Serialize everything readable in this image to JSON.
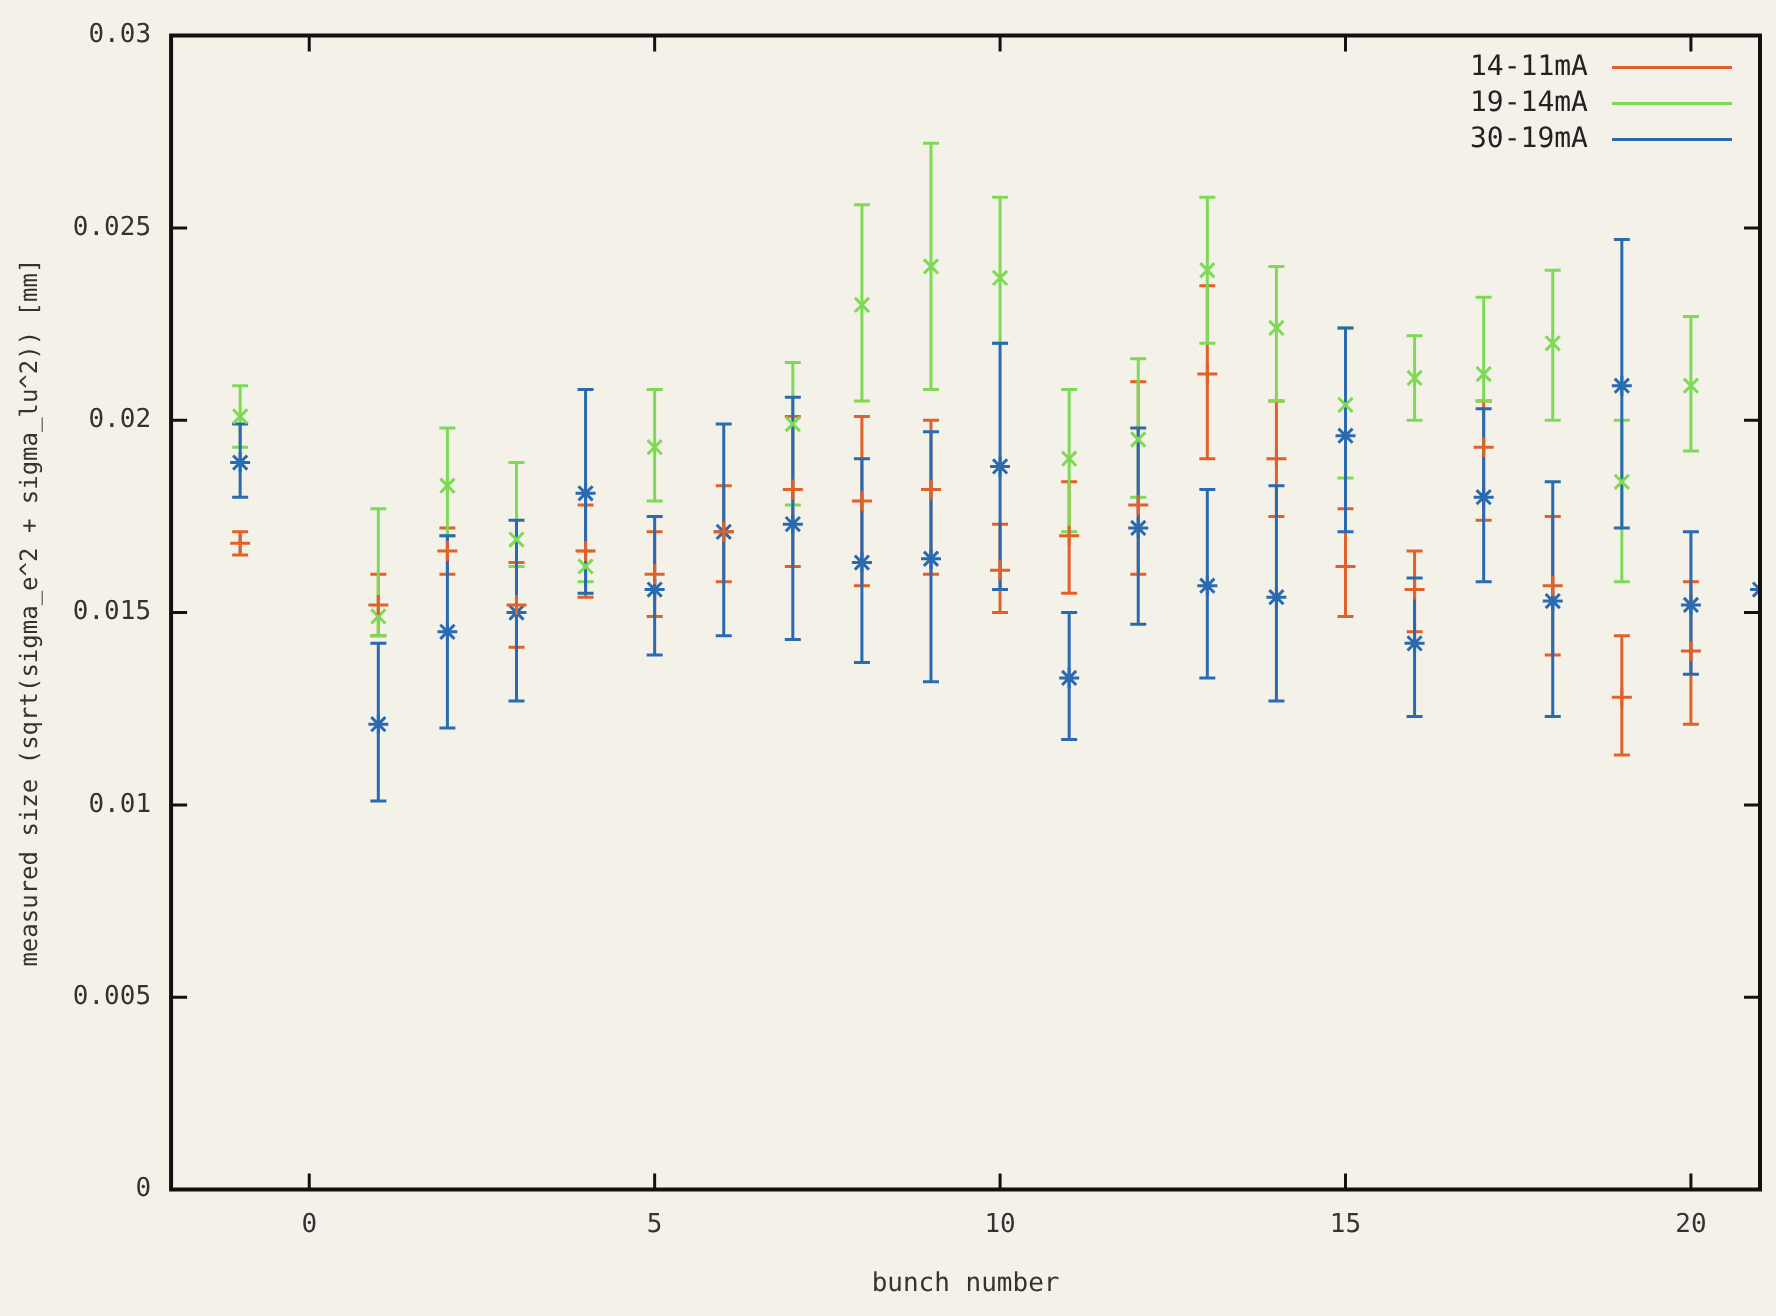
{
  "chart_data": {
    "type": "scatter",
    "xlabel": "bunch number",
    "ylabel": "measured size (sqrt(sigma_e^2 + sigma_lu^2)) [mm]",
    "xlim": [
      -2,
      21
    ],
    "xticks": [
      0,
      5,
      10,
      15,
      20
    ],
    "ylim": [
      0,
      0.03
    ],
    "yticks": [
      0,
      0.005,
      0.01,
      0.015,
      0.02,
      0.025,
      0.03
    ],
    "grid": false,
    "legend": "top right",
    "series": [
      {
        "name": "14-11mA",
        "color": "#e0622a",
        "marker": "cross",
        "x": [
          -1,
          1,
          2,
          3,
          4,
          5,
          6,
          7,
          8,
          9,
          10,
          11,
          12,
          13,
          14,
          15,
          16,
          17,
          18,
          19,
          20
        ],
        "values": [
          0.0168,
          0.0152,
          0.0166,
          0.0152,
          0.0166,
          0.016,
          0.0171,
          0.0182,
          0.0179,
          0.0182,
          0.0161,
          0.017,
          0.0178,
          0.0212,
          0.019,
          0.0162,
          0.0156,
          0.0193,
          0.0157,
          0.0128,
          0.014
        ],
        "errors": [
          [
            0.0165,
            0.0171
          ],
          [
            0.0144,
            0.016
          ],
          [
            0.016,
            0.0172
          ],
          [
            0.0141,
            0.0163
          ],
          [
            0.0154,
            0.0178
          ],
          [
            0.0149,
            0.0171
          ],
          [
            0.0158,
            0.0183
          ],
          [
            0.0162,
            0.0201
          ],
          [
            0.0157,
            0.0201
          ],
          [
            0.016,
            0.02
          ],
          [
            0.015,
            0.0173
          ],
          [
            0.0155,
            0.0184
          ],
          [
            0.016,
            0.021
          ],
          [
            0.019,
            0.0235
          ],
          [
            0.0175,
            0.0205
          ],
          [
            0.0149,
            0.0177
          ],
          [
            0.0145,
            0.0166
          ],
          [
            0.0174,
            0.0205
          ],
          [
            0.0139,
            0.0175
          ],
          [
            0.0113,
            0.0144
          ],
          [
            0.0121,
            0.0158
          ]
        ]
      },
      {
        "name": "19-14mA",
        "color": "#7ed957",
        "marker": "cross",
        "x": [
          -1,
          1,
          2,
          3,
          4,
          5,
          6,
          7,
          8,
          9,
          10,
          11,
          12,
          13,
          14,
          15,
          16,
          17,
          18,
          19,
          20
        ],
        "values": [
          0.0201,
          0.0149,
          0.0183,
          0.0169,
          0.0162,
          0.0193,
          null,
          0.0199,
          0.023,
          0.024,
          0.0237,
          0.019,
          0.0195,
          0.0239,
          0.0224,
          0.0204,
          0.0211,
          0.0212,
          0.022,
          0.0184,
          0.0209
        ],
        "errors": [
          [
            0.0193,
            0.0209
          ],
          [
            0.0144,
            0.0177
          ],
          [
            0.017,
            0.0198
          ],
          [
            0.0162,
            0.0189
          ],
          [
            0.0158,
            0.0166
          ],
          [
            0.0179,
            0.0208
          ],
          null,
          [
            0.0178,
            0.0215
          ],
          [
            0.0205,
            0.0256
          ],
          [
            0.0208,
            0.0272
          ],
          [
            0.022,
            0.0258
          ],
          [
            0.0171,
            0.0208
          ],
          [
            0.018,
            0.0216
          ],
          [
            0.022,
            0.0258
          ],
          [
            0.0205,
            0.024
          ],
          [
            0.0185,
            0.0224
          ],
          [
            0.02,
            0.0222
          ],
          [
            0.0205,
            0.0232
          ],
          [
            0.02,
            0.0239
          ],
          [
            0.0158,
            0.02
          ],
          [
            0.0192,
            0.0227
          ]
        ]
      },
      {
        "name": "30-19mA",
        "color": "#2a6ab0",
        "marker": "cross",
        "x": [
          -1,
          1,
          2,
          3,
          4,
          5,
          6,
          7,
          8,
          9,
          10,
          11,
          12,
          13,
          14,
          15,
          16,
          17,
          18,
          19,
          20,
          21
        ],
        "values": [
          0.0189,
          0.0121,
          0.0145,
          0.015,
          0.0181,
          0.0156,
          0.0171,
          0.0173,
          0.0163,
          0.0164,
          0.0188,
          0.0133,
          0.0172,
          0.0157,
          0.0154,
          0.0196,
          0.0142,
          0.018,
          0.0153,
          0.0209,
          0.0152,
          0.0156
        ],
        "errors": [
          [
            0.018,
            0.0199
          ],
          [
            0.0101,
            0.0142
          ],
          [
            0.012,
            0.017
          ],
          [
            0.0127,
            0.0174
          ],
          [
            0.0155,
            0.0208
          ],
          [
            0.0139,
            0.0175
          ],
          [
            0.0144,
            0.0199
          ],
          [
            0.0143,
            0.0206
          ],
          [
            0.0137,
            0.019
          ],
          [
            0.0132,
            0.0197
          ],
          [
            0.0156,
            0.022
          ],
          [
            0.0117,
            0.015
          ],
          [
            0.0147,
            0.0198
          ],
          [
            0.0133,
            0.0182
          ],
          [
            0.0127,
            0.0183
          ],
          [
            0.0171,
            0.0224
          ],
          [
            0.0123,
            0.0159
          ],
          [
            0.0158,
            0.0203
          ],
          [
            0.0123,
            0.0184
          ],
          [
            0.0172,
            0.0247
          ],
          [
            0.0134,
            0.0171
          ],
          null
        ]
      }
    ]
  }
}
